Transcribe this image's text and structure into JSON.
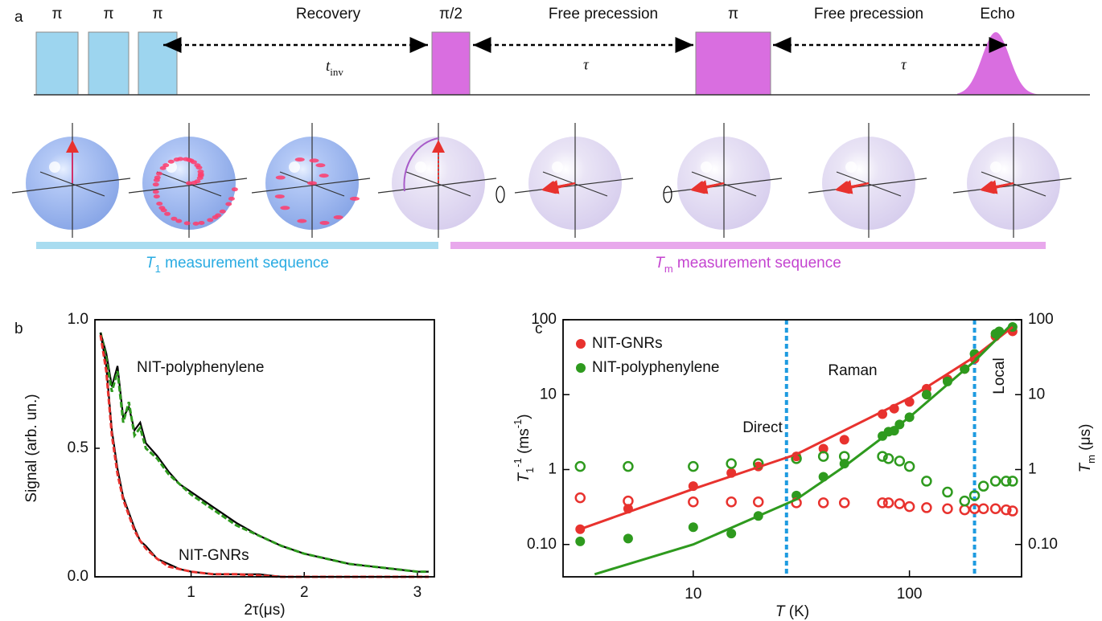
{
  "panel_labels": [
    "a",
    "b",
    "c"
  ],
  "sequence": {
    "pulses": [
      "π",
      "π",
      "π",
      "π/2",
      "π"
    ],
    "intervals": [
      "Recovery",
      "Free precession",
      "Free precession"
    ],
    "echo": "Echo",
    "t_inv": [
      "t",
      "inv"
    ],
    "tau": [
      "τ",
      "τ"
    ],
    "bars": [
      [
        "T",
        "1",
        " measurement sequence"
      ],
      [
        "T",
        "m",
        " measurement sequence"
      ]
    ]
  },
  "chart_data": [
    {
      "type": "line",
      "xlabel": "2τ(μs)",
      "ylabel": "Signal (arb. un.)",
      "x": [
        0.2,
        0.25,
        0.3,
        0.35,
        0.4,
        0.45,
        0.5,
        0.55,
        0.6,
        0.7,
        0.8,
        0.9,
        1.0,
        1.2,
        1.4,
        1.6,
        1.8,
        2.0,
        2.2,
        2.4,
        2.6,
        2.8,
        3.0,
        3.1
      ],
      "series": [
        {
          "color": "#000000",
          "values": [
            0.95,
            0.87,
            0.74,
            0.82,
            0.62,
            0.66,
            0.57,
            0.6,
            0.52,
            0.47,
            0.41,
            0.36,
            0.33,
            0.27,
            0.21,
            0.16,
            0.12,
            0.09,
            0.07,
            0.05,
            0.04,
            0.03,
            0.02,
            0.02
          ]
        },
        {
          "name": "NIT-polyphenylene",
          "color": "#2e9a1e",
          "dashed": true,
          "values": [
            0.95,
            0.85,
            0.72,
            0.8,
            0.6,
            0.68,
            0.55,
            0.58,
            0.5,
            0.46,
            0.4,
            0.36,
            0.32,
            0.26,
            0.2,
            0.16,
            0.12,
            0.09,
            0.07,
            0.05,
            0.04,
            0.03,
            0.02,
            0.02
          ]
        },
        {
          "color": "#000000",
          "values": [
            0.95,
            0.82,
            0.57,
            0.42,
            0.31,
            0.25,
            0.19,
            0.14,
            0.12,
            0.07,
            0.05,
            0.03,
            0.02,
            0.01,
            0.01,
            0.01,
            0,
            0,
            0,
            0,
            0,
            0,
            0,
            0
          ]
        },
        {
          "name": "NIT-GNRs",
          "color": "#e8322e",
          "dashed": true,
          "values": [
            0.94,
            0.8,
            0.55,
            0.4,
            0.3,
            0.24,
            0.18,
            0.14,
            0.11,
            0.07,
            0.04,
            0.03,
            0.02,
            0.01,
            0.01,
            0.005,
            0,
            0,
            0,
            0,
            0,
            0,
            0,
            0
          ]
        }
      ],
      "xlim": [
        0.15,
        3.15
      ],
      "ylim": [
        0,
        1.0
      ],
      "xticks": [
        1,
        2,
        3
      ],
      "yticks": [
        {
          "value": 0,
          "label": "0.0"
        },
        {
          "value": 0.5,
          "label": "0.5"
        },
        {
          "value": 1.0,
          "label": "1.0"
        }
      ]
    },
    {
      "type": "scatter",
      "xlabel": [
        "T",
        " (K)"
      ],
      "ylabel": [
        "T",
        "1",
        "-1",
        " (ms",
        "-1",
        ")"
      ],
      "y2label": [
        "T",
        "m",
        " (μs)"
      ],
      "log_x": true,
      "log_y": true,
      "legend": "upper left",
      "xlim": [
        2.5,
        330
      ],
      "ylim": [
        0.037,
        100
      ],
      "y2lim": [
        0.037,
        100
      ],
      "xticks": [
        10,
        100
      ],
      "yticks": [
        {
          "value": 0.1,
          "label": "0.10"
        },
        1,
        10,
        100
      ],
      "y2ticks": [
        {
          "value": 0.1,
          "label": "0.10"
        },
        1,
        10,
        100
      ],
      "vlines": [
        27,
        200
      ],
      "vline_color": "#1e9be0",
      "regions": [
        "Direct",
        "Raman",
        "Local"
      ],
      "series": [
        {
          "name": "NIT-GNRs",
          "color": "#e8322e",
          "marker": "filled",
          "x": [
            3,
            5,
            10,
            15,
            20,
            30,
            40,
            50,
            75,
            85,
            100,
            120,
            150,
            180,
            200,
            250,
            300
          ],
          "values": [
            0.16,
            0.3,
            0.6,
            0.9,
            1.1,
            1.5,
            1.9,
            2.5,
            5.5,
            6.5,
            8,
            12,
            16,
            22,
            30,
            60,
            70
          ]
        },
        {
          "name": "NIT-polyphenylene",
          "color": "#2e9a1e",
          "marker": "filled",
          "x": [
            3,
            5,
            10,
            15,
            20,
            30,
            40,
            50,
            75,
            80,
            85,
            90,
            100,
            120,
            150,
            180,
            200,
            250,
            260,
            300
          ],
          "values": [
            0.11,
            0.12,
            0.17,
            0.14,
            0.24,
            0.45,
            0.8,
            1.2,
            2.8,
            3.2,
            3.3,
            4,
            5,
            10,
            15,
            22,
            35,
            65,
            70,
            80
          ]
        },
        {
          "color": "#e8322e",
          "marker": "open",
          "axis": "y2",
          "x": [
            3,
            5,
            10,
            15,
            20,
            30,
            40,
            50,
            75,
            80,
            90,
            100,
            120,
            150,
            180,
            200,
            220,
            250,
            280,
            300
          ],
          "values": [
            0.42,
            0.38,
            0.37,
            0.37,
            0.37,
            0.36,
            0.36,
            0.36,
            0.36,
            0.36,
            0.35,
            0.32,
            0.31,
            0.3,
            0.29,
            0.3,
            0.3,
            0.3,
            0.29,
            0.28
          ]
        },
        {
          "color": "#2e9a1e",
          "marker": "open",
          "axis": "y2",
          "x": [
            3,
            5,
            10,
            15,
            20,
            30,
            40,
            50,
            75,
            80,
            90,
            100,
            120,
            150,
            180,
            200,
            220,
            250,
            280,
            300
          ],
          "values": [
            1.1,
            1.1,
            1.1,
            1.2,
            1.2,
            1.4,
            1.5,
            1.5,
            1.5,
            1.4,
            1.3,
            1.1,
            0.7,
            0.5,
            0.38,
            0.45,
            0.6,
            0.7,
            0.7,
            0.7
          ]
        },
        {
          "color": "#e8322e",
          "marker": "line",
          "x": [
            3,
            10,
            30,
            100,
            200,
            300
          ],
          "values": [
            0.16,
            0.55,
            1.6,
            9,
            32,
            80
          ]
        },
        {
          "color": "#2e9a1e",
          "marker": "line",
          "x": [
            3.5,
            10,
            30,
            50,
            100,
            200,
            300
          ],
          "values": [
            0.04,
            0.1,
            0.4,
            1.1,
            5,
            28,
            90
          ]
        }
      ]
    }
  ]
}
